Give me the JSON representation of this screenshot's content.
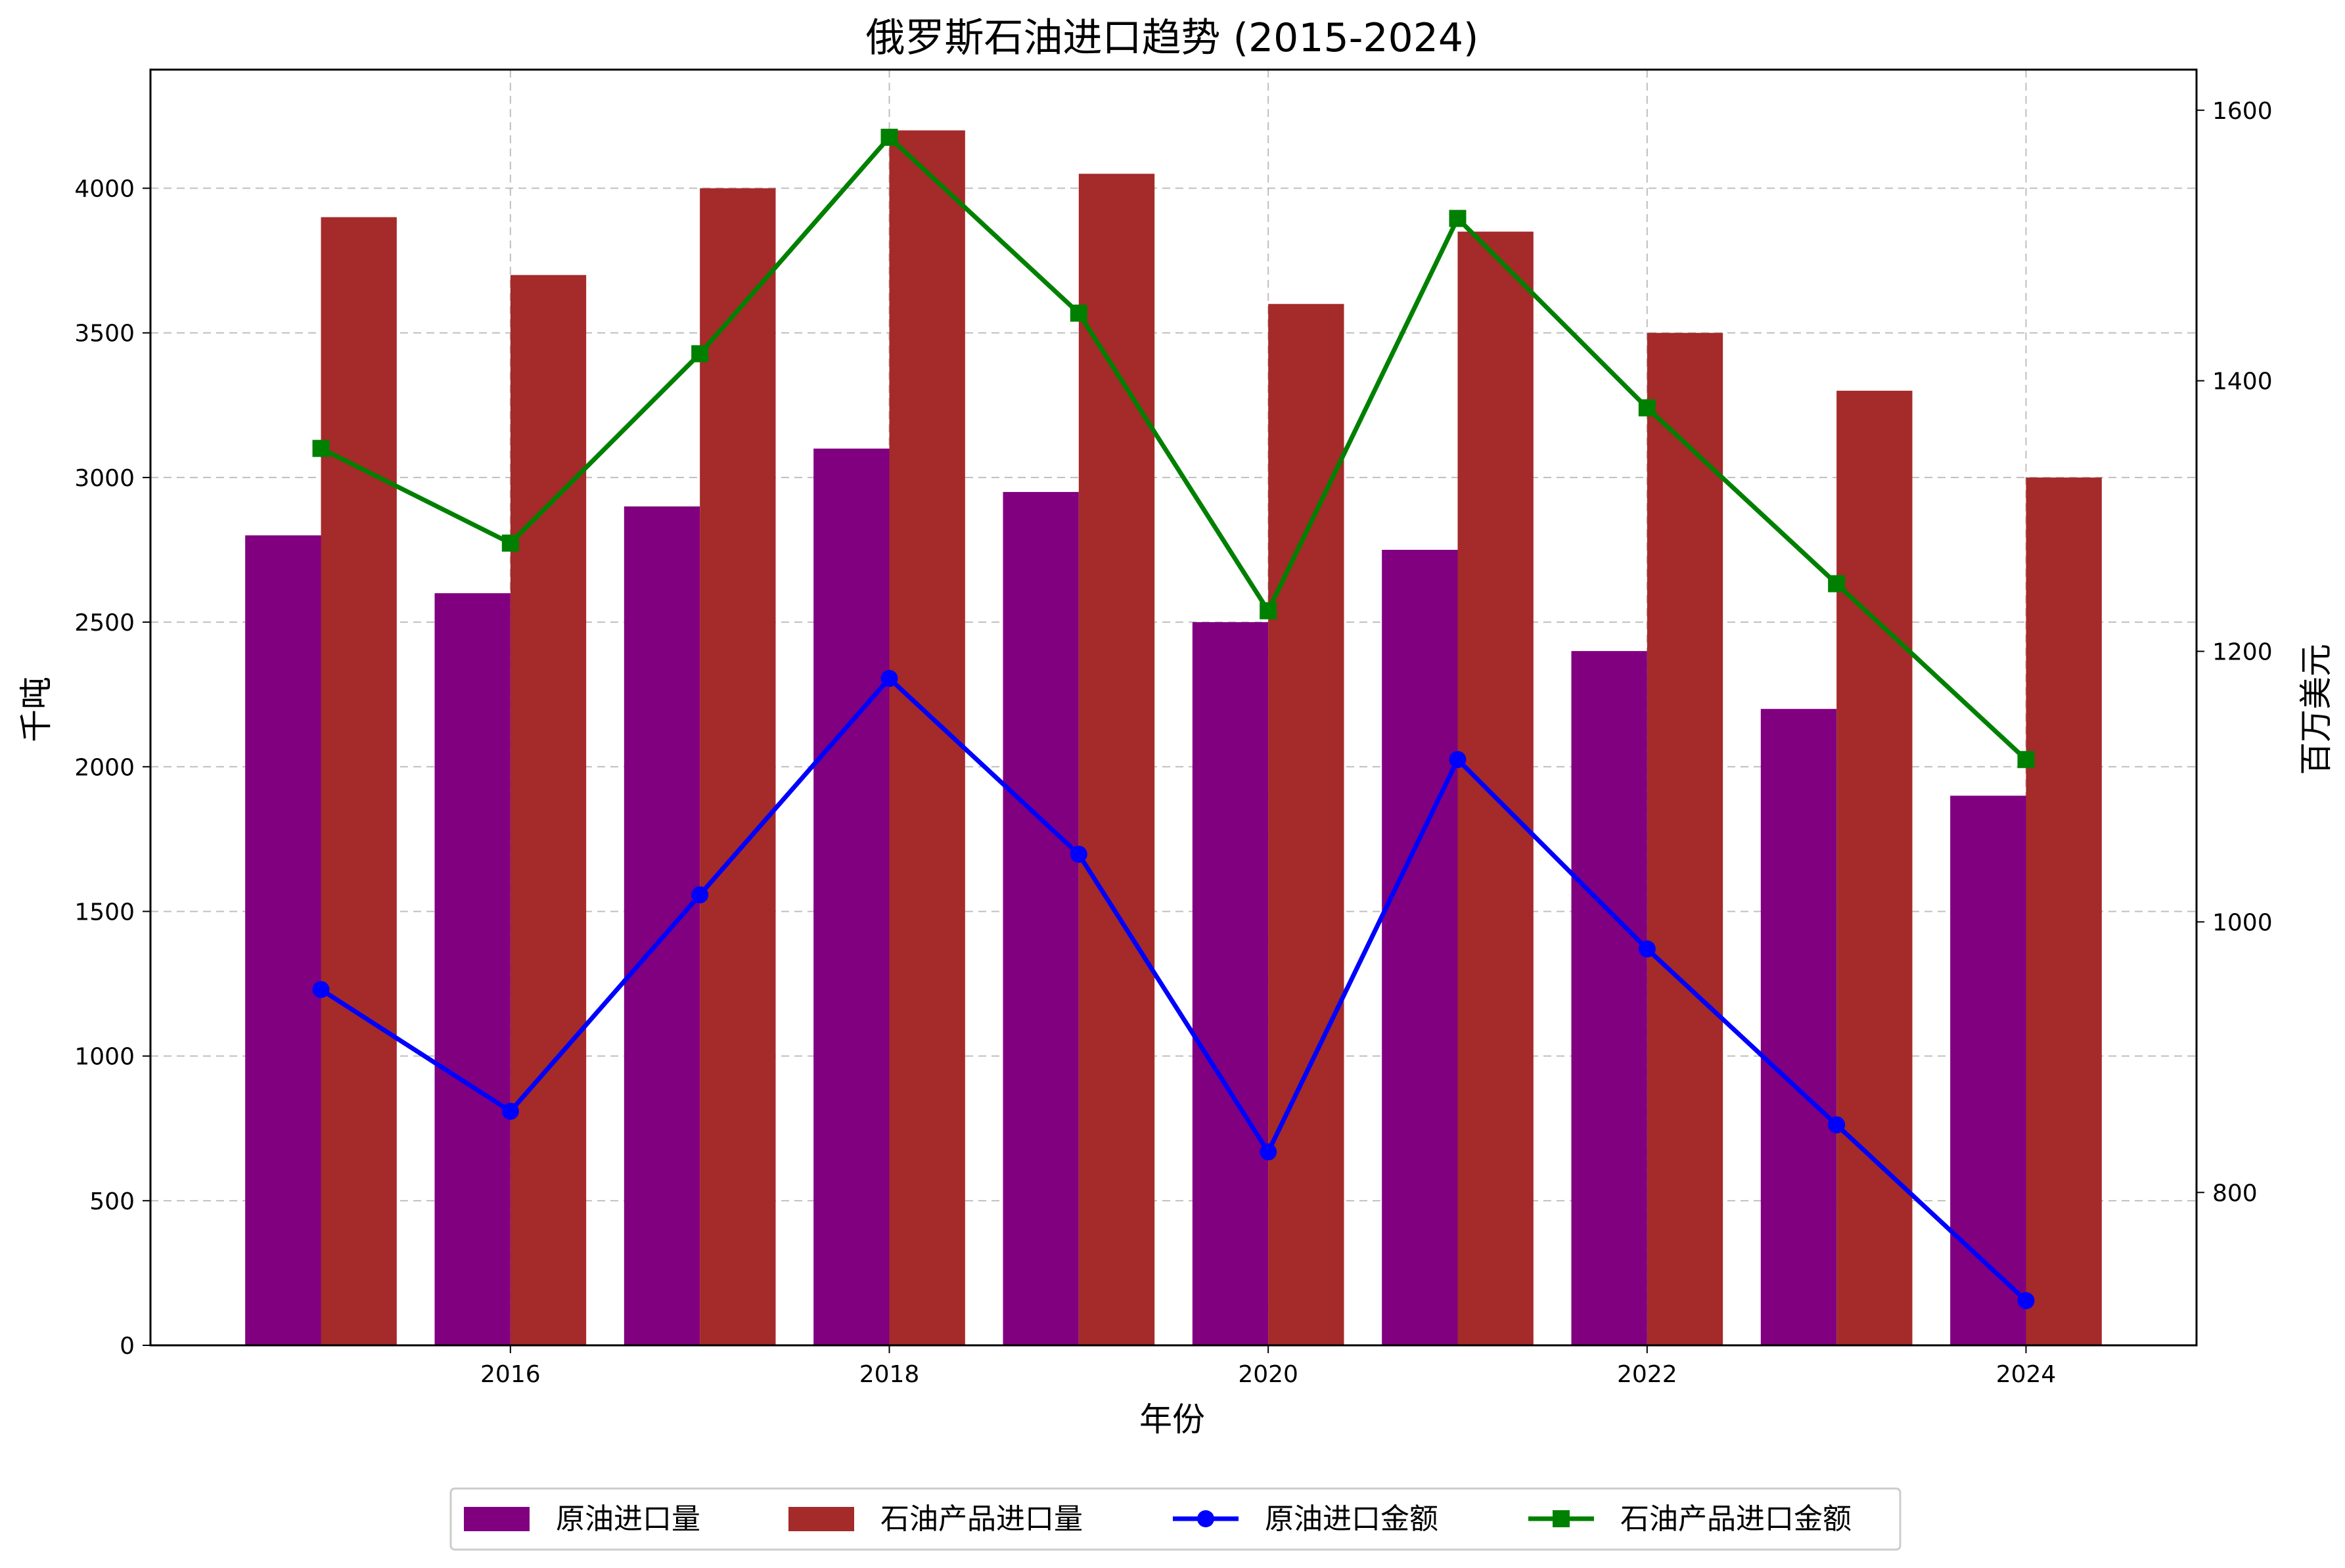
{
  "chart_data": {
    "type": "bar",
    "title": "俄罗斯石油进口趋势 (2015-2024)",
    "xlabel": "年份",
    "ylabel": "千吨",
    "y2label": "百万美元",
    "x": [
      2015,
      2016,
      2017,
      2018,
      2019,
      2020,
      2021,
      2022,
      2023,
      2024
    ],
    "x_ticks": [
      2016,
      2018,
      2020,
      2022,
      2024
    ],
    "xlim": [
      2014.1,
      2024.9
    ],
    "ylim": [
      0,
      4410
    ],
    "y_ticks": [
      0,
      500,
      1000,
      1500,
      2000,
      2500,
      3000,
      3500,
      4000
    ],
    "y2lim": [
      687,
      1630
    ],
    "y2_ticks": [
      800,
      1000,
      1200,
      1400,
      1600
    ],
    "bar_series": [
      {
        "name": "原油进口量",
        "color": "#800080",
        "axis": "left",
        "offset": -0.2,
        "values": [
          2800,
          2600,
          2900,
          3100,
          2950,
          2500,
          2750,
          2400,
          2200,
          1900
        ]
      },
      {
        "name": "石油产品进口量",
        "color": "#a52a2a",
        "axis": "left",
        "offset": 0.2,
        "values": [
          3900,
          3700,
          4000,
          4200,
          4050,
          3600,
          3850,
          3500,
          3300,
          3000
        ]
      }
    ],
    "line_series": [
      {
        "name": "原油进口金额",
        "color": "#0000ff",
        "marker": "circle",
        "axis": "right",
        "values": [
          950,
          860,
          1020,
          1180,
          1050,
          830,
          1120,
          980,
          850,
          720
        ]
      },
      {
        "name": "石油产品进口金额",
        "color": "#008000",
        "marker": "square",
        "axis": "right",
        "values": [
          1350,
          1280,
          1420,
          1580,
          1450,
          1230,
          1520,
          1380,
          1250,
          1120
        ]
      }
    ],
    "bar_width": 0.4,
    "grid": true,
    "legend_position": "bottom-center"
  }
}
